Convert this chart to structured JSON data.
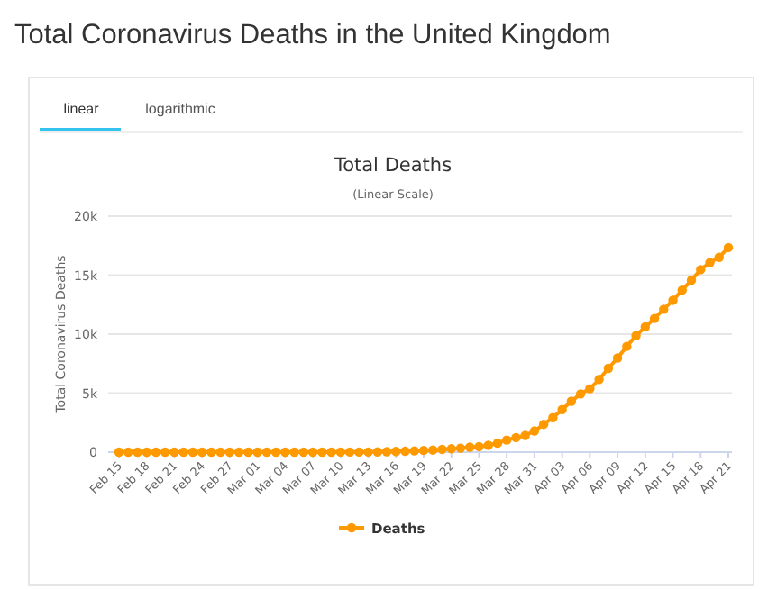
{
  "chart_data": {
    "type": "line",
    "title": "Total Deaths",
    "subtitle": "(Linear Scale)",
    "ylabel": "Total Coronavirus Deaths",
    "annotations": [
      "Total Coronavirus Deaths in the United Kingdom",
      "linear",
      "logarithmic"
    ],
    "categories": [
      "Feb 15",
      null,
      null,
      "Feb 18",
      null,
      null,
      "Feb 21",
      null,
      null,
      "Feb 24",
      null,
      null,
      "Feb 27",
      null,
      null,
      "Mar 01",
      null,
      null,
      "Mar 04",
      null,
      null,
      "Mar 07",
      null,
      null,
      "Mar 10",
      null,
      null,
      "Mar 13",
      null,
      null,
      "Mar 16",
      null,
      null,
      "Mar 19",
      null,
      null,
      "Mar 22",
      null,
      null,
      "Mar 25",
      null,
      null,
      "Mar 28",
      null,
      null,
      "Mar 31",
      null,
      null,
      "Apr 03",
      null,
      null,
      "Apr 06",
      null,
      null,
      "Apr 09",
      null,
      null,
      "Apr 12",
      null,
      null,
      "Apr 15",
      null,
      null,
      "Apr 18",
      null,
      null,
      "Apr 21"
    ],
    "series": [
      {
        "name": "Deaths",
        "color": "#ff9900",
        "values": [
          0,
          0,
          0,
          0,
          0,
          0,
          0,
          0,
          0,
          0,
          0,
          0,
          0,
          0,
          0,
          0,
          0,
          0,
          0,
          0,
          1,
          2,
          2,
          3,
          6,
          8,
          8,
          10,
          21,
          35,
          55,
          71,
          104,
          144,
          177,
          233,
          281,
          335,
          422,
          463,
          578,
          759,
          1019,
          1228,
          1408,
          1789,
          2352,
          2921,
          3605,
          4313,
          4934,
          5373,
          6159,
          7097,
          7978,
          8958,
          9875,
          10612,
          11329,
          12107,
          12868,
          13729,
          14576,
          15464,
          16060,
          16509,
          17337
        ]
      }
    ],
    "ylim": [
      0,
      20000
    ],
    "yticks": [
      {
        "value": 0,
        "label": "0"
      },
      {
        "value": 5000,
        "label": "5k"
      },
      {
        "value": 10000,
        "label": "10k"
      },
      {
        "value": 15000,
        "label": "15k"
      },
      {
        "value": 20000,
        "label": "20k"
      }
    ],
    "grid": "y",
    "legend": "bottom",
    "marker": "circle",
    "line_style": "solid"
  }
}
